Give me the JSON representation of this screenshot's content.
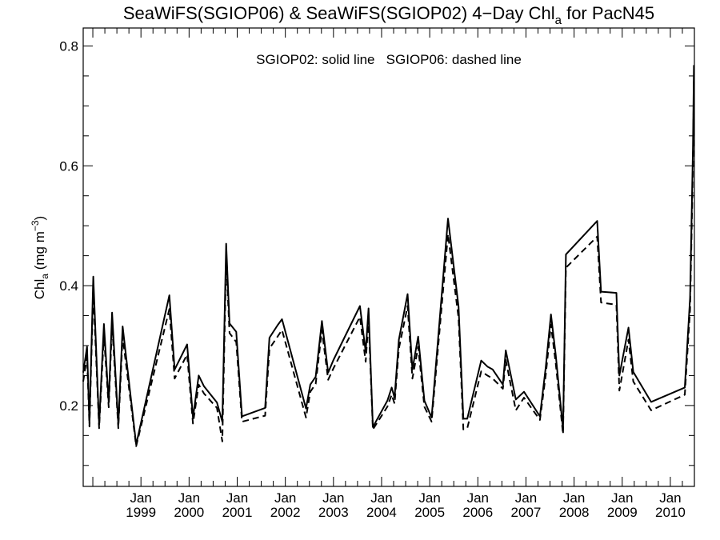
{
  "chart_data": {
    "type": "line",
    "title": {
      "main": "SeaWiFS(SGIOP06) & SeaWiFS(SGIOP02) 4−Day Chl",
      "subscript": "a",
      "tail": " for PacN45"
    },
    "annotation": "SGIOP02: solid line   SGIOP06: dashed line",
    "ylabel": {
      "main": "Chl",
      "subscript": "a",
      "units": " (mg m",
      "superscript": "−3",
      "close": ")"
    },
    "xlabel": "",
    "xlim": [
      1997.8,
      2010.5
    ],
    "ylim": [
      0.065,
      0.83
    ],
    "yticks": [
      {
        "value": 0.2,
        "label": "0.2"
      },
      {
        "value": 0.4,
        "label": "0.4"
      },
      {
        "value": 0.6,
        "label": "0.6"
      },
      {
        "value": 0.8,
        "label": "0.8"
      }
    ],
    "xticks": [
      {
        "value": 1999.0,
        "month": "Jan",
        "year": "1999"
      },
      {
        "value": 2000.0,
        "month": "Jan",
        "year": "2000"
      },
      {
        "value": 2001.0,
        "month": "Jan",
        "year": "2001"
      },
      {
        "value": 2002.0,
        "month": "Jan",
        "year": "2002"
      },
      {
        "value": 2003.0,
        "month": "Jan",
        "year": "2003"
      },
      {
        "value": 2004.0,
        "month": "Jan",
        "year": "2004"
      },
      {
        "value": 2005.0,
        "month": "Jan",
        "year": "2005"
      },
      {
        "value": 2006.0,
        "month": "Jan",
        "year": "2006"
      },
      {
        "value": 2007.0,
        "month": "Jan",
        "year": "2007"
      },
      {
        "value": 2008.0,
        "month": "Jan",
        "year": "2008"
      },
      {
        "value": 2009.0,
        "month": "Jan",
        "year": "2009"
      },
      {
        "value": 2010.0,
        "month": "Jan",
        "year": "2010"
      }
    ],
    "grid": false,
    "series": [
      {
        "id": "sgiop02",
        "style": "solid",
        "x": [
          1997.8,
          1997.88,
          1997.93,
          1998.01,
          1998.13,
          1998.23,
          1998.33,
          1998.4,
          1998.53,
          1998.62,
          1998.9,
          1999.59,
          1999.7,
          1999.96,
          2000.08,
          2000.2,
          2000.31,
          2000.58,
          2000.69,
          2000.77,
          2000.84,
          2000.98,
          2001.1,
          2001.58,
          2001.67,
          2001.84,
          2001.93,
          2002.43,
          2002.52,
          2002.63,
          2002.76,
          2002.89,
          2003.0,
          2003.55,
          2003.67,
          2003.73,
          2003.82,
          2004.12,
          2004.21,
          2004.27,
          2004.36,
          2004.54,
          2004.64,
          2004.76,
          2004.89,
          2005.04,
          2005.38,
          2005.6,
          2005.7,
          2005.78,
          2006.07,
          2006.2,
          2006.31,
          2006.52,
          2006.58,
          2006.79,
          2006.96,
          2007.29,
          2007.41,
          2007.52,
          2007.62,
          2007.77,
          2007.83,
          2008.48,
          2008.56,
          2008.88,
          2008.94,
          2009.13,
          2009.23,
          2009.6,
          2010.3,
          2010.41,
          2010.47,
          2010.49
        ],
        "y": [
          0.255,
          0.298,
          0.17,
          0.415,
          0.168,
          0.336,
          0.205,
          0.355,
          0.168,
          0.332,
          0.135,
          0.384,
          0.26,
          0.302,
          0.18,
          0.25,
          0.232,
          0.205,
          0.173,
          0.47,
          0.337,
          0.323,
          0.182,
          0.196,
          0.313,
          0.334,
          0.344,
          0.195,
          0.235,
          0.248,
          0.341,
          0.255,
          0.276,
          0.366,
          0.29,
          0.362,
          0.164,
          0.208,
          0.23,
          0.213,
          0.31,
          0.386,
          0.26,
          0.315,
          0.208,
          0.18,
          0.512,
          0.365,
          0.178,
          0.178,
          0.275,
          0.265,
          0.26,
          0.235,
          0.292,
          0.21,
          0.223,
          0.182,
          0.263,
          0.352,
          0.284,
          0.16,
          0.452,
          0.508,
          0.39,
          0.388,
          0.25,
          0.33,
          0.256,
          0.206,
          0.23,
          0.38,
          0.63,
          0.768
        ]
      },
      {
        "id": "sgiop06",
        "style": "dashed",
        "x": [
          1997.8,
          1997.88,
          1997.93,
          1998.01,
          1998.13,
          1998.23,
          1998.33,
          1998.4,
          1998.53,
          1998.62,
          1998.9,
          1999.59,
          1999.7,
          1999.96,
          2000.08,
          2000.2,
          2000.31,
          2000.58,
          2000.69,
          2000.77,
          2000.84,
          2000.98,
          2001.1,
          2001.58,
          2001.67,
          2001.84,
          2001.93,
          2002.43,
          2002.52,
          2002.63,
          2002.76,
          2002.89,
          2003.0,
          2003.55,
          2003.67,
          2003.73,
          2003.82,
          2004.12,
          2004.21,
          2004.27,
          2004.36,
          2004.54,
          2004.64,
          2004.76,
          2004.89,
          2005.04,
          2005.38,
          2005.6,
          2005.7,
          2005.78,
          2006.07,
          2006.2,
          2006.31,
          2006.52,
          2006.58,
          2006.79,
          2006.96,
          2007.29,
          2007.41,
          2007.52,
          2007.62,
          2007.77,
          2007.83,
          2008.48,
          2008.56,
          2008.88,
          2008.94,
          2009.13,
          2009.23,
          2009.6,
          2010.3,
          2010.41,
          2010.47,
          2010.49
        ],
        "y": [
          0.24,
          0.282,
          0.165,
          0.392,
          0.162,
          0.318,
          0.197,
          0.336,
          0.162,
          0.315,
          0.132,
          0.361,
          0.245,
          0.285,
          0.17,
          0.235,
          0.22,
          0.196,
          0.14,
          0.445,
          0.321,
          0.306,
          0.173,
          0.183,
          0.295,
          0.315,
          0.326,
          0.18,
          0.223,
          0.236,
          0.326,
          0.243,
          0.262,
          0.348,
          0.273,
          0.344,
          0.16,
          0.198,
          0.218,
          0.203,
          0.295,
          0.366,
          0.245,
          0.298,
          0.198,
          0.173,
          0.486,
          0.346,
          0.16,
          0.162,
          0.257,
          0.25,
          0.245,
          0.228,
          0.276,
          0.192,
          0.213,
          0.176,
          0.25,
          0.335,
          0.27,
          0.152,
          0.43,
          0.482,
          0.372,
          0.368,
          0.225,
          0.31,
          0.24,
          0.192,
          0.218,
          0.36,
          0.6,
          0.74
        ]
      }
    ]
  }
}
